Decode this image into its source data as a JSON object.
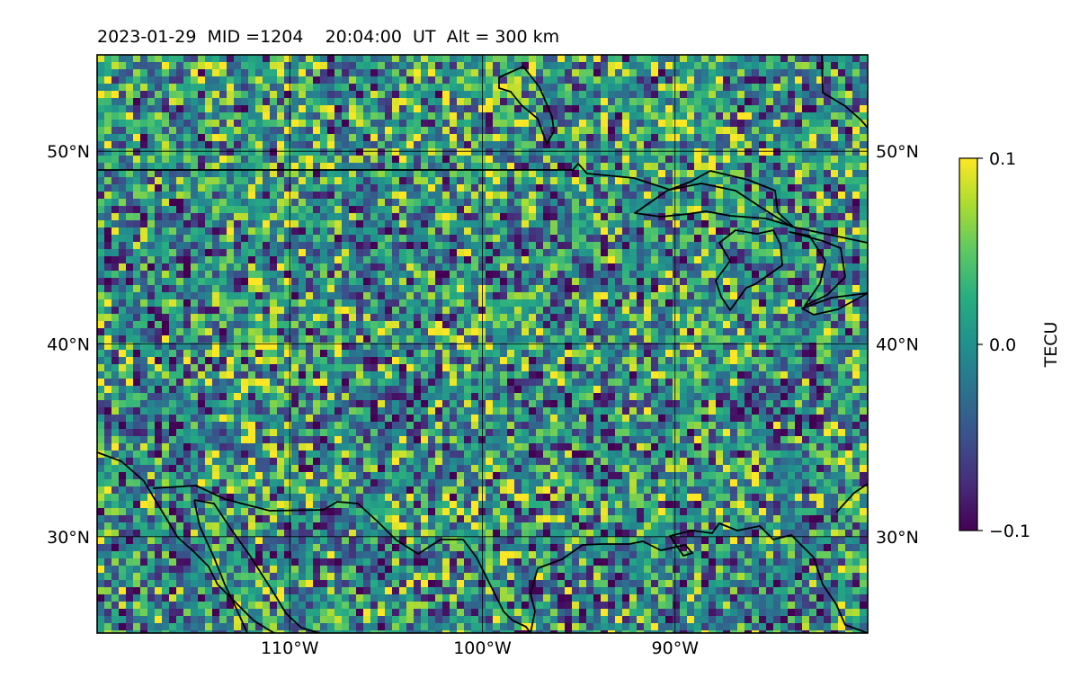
{
  "title": "2023-01-29  MID =1204    20:04:00  UT  Alt = 300 km",
  "map": {
    "type": "heatmap",
    "lon_range": [
      -120,
      -80
    ],
    "lat_range": [
      25,
      55
    ],
    "lon_ticks": [
      {
        "value": -110,
        "label": "110°W"
      },
      {
        "value": -100,
        "label": "100°W"
      },
      {
        "value": -90,
        "label": "90°W"
      }
    ],
    "lat_ticks": [
      {
        "value": 50,
        "label": "50°N"
      },
      {
        "value": 40,
        "label": "40°N"
      },
      {
        "value": 30,
        "label": "30°N"
      }
    ],
    "grid": true,
    "colormap": "viridis"
  },
  "colorbar": {
    "label": "TECU",
    "range": [
      -0.1,
      0.1
    ],
    "ticks": [
      {
        "value": 0.1,
        "label": "0.1"
      },
      {
        "value": 0.0,
        "label": "0.0"
      },
      {
        "value": -0.1,
        "label": "−0.1"
      }
    ]
  },
  "colors": {
    "viridis": [
      "#440154",
      "#472c7a",
      "#3b518b",
      "#2c718e",
      "#21908d",
      "#27ad81",
      "#5cc863",
      "#aadc32",
      "#fde725"
    ],
    "base": "#2f8a8a",
    "coastline": "#000000"
  }
}
